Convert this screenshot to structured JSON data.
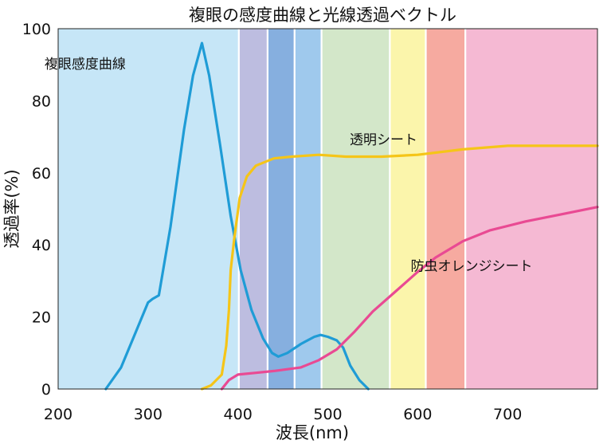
{
  "chart_data": {
    "type": "line",
    "title": "複眼の感度曲線と光線透過ベクトル",
    "xlabel": "波長(nm)",
    "ylabel": "透過率(%)",
    "xlim": [
      200,
      800
    ],
    "ylim": [
      0,
      100
    ],
    "xticks": [
      200,
      300,
      400,
      500,
      600,
      700
    ],
    "yticks": [
      0,
      20,
      40,
      60,
      80,
      100
    ],
    "grid": false,
    "spectrum_bands": [
      {
        "from": 200,
        "to": 400,
        "color": "#c6e6f7"
      },
      {
        "from": 402,
        "to": 432,
        "color": "#bdbde0"
      },
      {
        "from": 434,
        "to": 462,
        "color": "#86afdf"
      },
      {
        "from": 464,
        "to": 492,
        "color": "#9fc9ed"
      },
      {
        "from": 494,
        "to": 568,
        "color": "#d3e7c9"
      },
      {
        "from": 570,
        "to": 608,
        "color": "#fbf5ab"
      },
      {
        "from": 610,
        "to": 652,
        "color": "#f6aaa0"
      },
      {
        "from": 654,
        "to": 800,
        "color": "#f5b9d3"
      }
    ],
    "series": [
      {
        "name": "複眼感度曲線",
        "color": "#1f9cd6",
        "points": [
          [
            253,
            0
          ],
          [
            270,
            6
          ],
          [
            285,
            15
          ],
          [
            300,
            24
          ],
          [
            305,
            25
          ],
          [
            312,
            26
          ],
          [
            325,
            45
          ],
          [
            340,
            72
          ],
          [
            350,
            87
          ],
          [
            360,
            96
          ],
          [
            368,
            87
          ],
          [
            380,
            68
          ],
          [
            392,
            48
          ],
          [
            403,
            33
          ],
          [
            415,
            22
          ],
          [
            428,
            14
          ],
          [
            438,
            10
          ],
          [
            445,
            9
          ],
          [
            455,
            10
          ],
          [
            470,
            12.5
          ],
          [
            485,
            14.5
          ],
          [
            492,
            15
          ],
          [
            500,
            14.5
          ],
          [
            510,
            13.5
          ],
          [
            517,
            11.5
          ],
          [
            525,
            6.5
          ],
          [
            535,
            2.5
          ],
          [
            545,
            0
          ]
        ]
      },
      {
        "name": "透明シート",
        "color": "#f5c518",
        "points": [
          [
            360,
            0
          ],
          [
            370,
            1
          ],
          [
            382,
            4
          ],
          [
            387,
            12
          ],
          [
            390,
            22
          ],
          [
            392,
            33
          ],
          [
            396,
            42
          ],
          [
            402,
            53
          ],
          [
            410,
            59
          ],
          [
            420,
            62
          ],
          [
            440,
            64
          ],
          [
            460,
            64.5
          ],
          [
            490,
            65
          ],
          [
            520,
            64.5
          ],
          [
            560,
            64.5
          ],
          [
            600,
            65
          ],
          [
            650,
            66.5
          ],
          [
            700,
            67.5
          ],
          [
            760,
            67.5
          ],
          [
            800,
            67.5
          ]
        ]
      },
      {
        "name": "防虫オレンジシート",
        "color": "#e94a93",
        "points": [
          [
            382,
            0
          ],
          [
            390,
            2.5
          ],
          [
            400,
            4
          ],
          [
            420,
            4.5
          ],
          [
            440,
            5
          ],
          [
            470,
            6
          ],
          [
            490,
            8
          ],
          [
            510,
            11
          ],
          [
            530,
            16
          ],
          [
            550,
            21.5
          ],
          [
            575,
            27
          ],
          [
            600,
            32.5
          ],
          [
            620,
            36.5
          ],
          [
            650,
            41
          ],
          [
            680,
            44
          ],
          [
            720,
            46.5
          ],
          [
            760,
            48.5
          ],
          [
            800,
            50.5
          ]
        ]
      }
    ],
    "annotations": [
      {
        "text": "複眼感度曲線",
        "x": 230,
        "y": 90
      },
      {
        "text": "透明シート",
        "x": 562,
        "y": 69
      },
      {
        "text": "防虫オレンジシート",
        "x": 660,
        "y": 34
      }
    ]
  }
}
